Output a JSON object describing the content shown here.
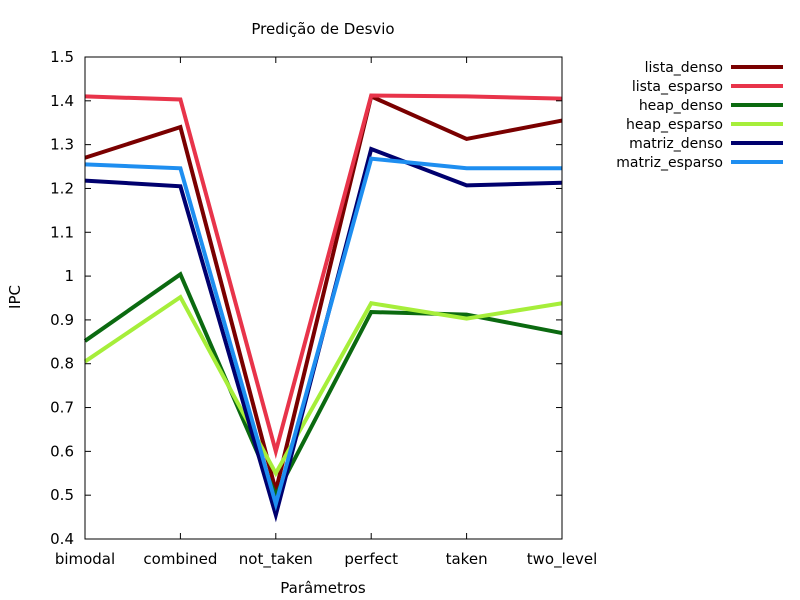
{
  "chart_data": {
    "type": "line",
    "title": "Predição de Desvio",
    "xlabel": "Parâmetros",
    "ylabel": "IPC",
    "categories": [
      "bimodal",
      "combined",
      "not_taken",
      "perfect",
      "taken",
      "two_level"
    ],
    "ylim": [
      0.4,
      1.5
    ],
    "yticks": [
      "0.4",
      "0.5",
      "0.6",
      "0.7",
      "0.8",
      "0.9",
      "1",
      "1.1",
      "1.2",
      "1.3",
      "1.4",
      "1.5"
    ],
    "grid": false,
    "legend_position": "outside-top-right",
    "series": [
      {
        "name": "lista_denso",
        "color": "#7a0000",
        "values": [
          1.27,
          1.34,
          0.51,
          1.41,
          1.313,
          1.355
        ]
      },
      {
        "name": "lista_esparso",
        "color": "#e8344a",
        "values": [
          1.41,
          1.403,
          0.6,
          1.412,
          1.41,
          1.405
        ]
      },
      {
        "name": "heap_denso",
        "color": "#0b6a10",
        "values": [
          0.852,
          1.004,
          0.5,
          0.918,
          0.912,
          0.87
        ]
      },
      {
        "name": "heap_esparso",
        "color": "#a6ee3a",
        "values": [
          0.805,
          0.952,
          0.55,
          0.938,
          0.903,
          0.938
        ]
      },
      {
        "name": "matriz_denso",
        "color": "#00006e",
        "values": [
          1.218,
          1.205,
          0.455,
          1.29,
          1.207,
          1.213
        ]
      },
      {
        "name": "matriz_esparso",
        "color": "#1e8ef0",
        "values": [
          1.255,
          1.246,
          0.48,
          1.268,
          1.246,
          1.246
        ]
      }
    ]
  }
}
